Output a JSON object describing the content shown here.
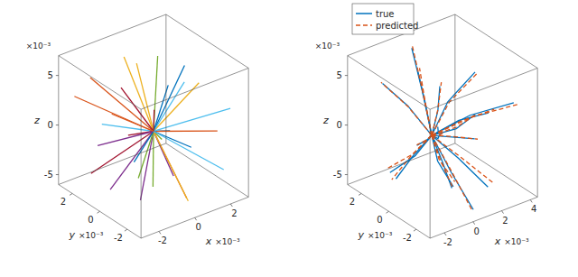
{
  "chart_data": [
    {
      "type": "line3d",
      "xlabel": "x",
      "ylabel": "y",
      "zlabel": "z",
      "exponent": "×10⁻³",
      "xlim": [
        -3,
        3
      ],
      "ylim": [
        -3,
        3
      ],
      "zlim": [
        -6,
        7
      ],
      "xticks": [
        -2,
        0,
        2
      ],
      "yticks": [
        -2,
        0,
        2
      ],
      "zticks": [
        -5,
        0,
        5
      ],
      "series": [
        {
          "color": "#0072bd",
          "values": [
            [
              0,
              0,
              0
            ],
            [
              2.5,
              1,
              4
            ]
          ]
        },
        {
          "color": "#d95319",
          "values": [
            [
              0,
              0,
              0
            ],
            [
              -2,
              2,
              5
            ]
          ]
        },
        {
          "color": "#edb120",
          "values": [
            [
              0,
              0,
              0
            ],
            [
              1,
              -2,
              6
            ]
          ]
        },
        {
          "color": "#7e2f8e",
          "values": [
            [
              0,
              0,
              0
            ],
            [
              -1.5,
              -1,
              -5
            ]
          ]
        },
        {
          "color": "#77ac30",
          "values": [
            [
              0,
              0,
              0
            ],
            [
              2,
              2,
              -4
            ]
          ]
        },
        {
          "color": "#4dbeee",
          "values": [
            [
              0,
              0,
              0
            ],
            [
              -2.5,
              0.5,
              2
            ]
          ]
        },
        {
          "color": "#a2142f",
          "values": [
            [
              0,
              0,
              0
            ],
            [
              0.5,
              2.5,
              -3
            ]
          ]
        },
        {
          "color": "#0072bd",
          "values": [
            [
              0,
              0,
              0
            ],
            [
              -1,
              -2.5,
              3
            ]
          ]
        },
        {
          "color": "#d95319",
          "values": [
            [
              0,
              0,
              0
            ],
            [
              2.8,
              -1,
              -1
            ]
          ]
        },
        {
          "color": "#edb120",
          "values": [
            [
              0,
              0,
              0
            ],
            [
              -0.5,
              1.5,
              6.5
            ]
          ]
        },
        {
          "color": "#7e2f8e",
          "values": [
            [
              0,
              0,
              0
            ],
            [
              1.5,
              0.5,
              -6
            ]
          ]
        },
        {
          "color": "#77ac30",
          "values": [
            [
              0,
              0,
              0
            ],
            [
              -2,
              -1.5,
              -2
            ]
          ]
        },
        {
          "color": "#4dbeee",
          "values": [
            [
              0,
              0,
              0
            ],
            [
              0.8,
              -1.2,
              5.5
            ]
          ]
        },
        {
          "color": "#a2142f",
          "values": [
            [
              0,
              0,
              0
            ],
            [
              -1.8,
              2.2,
              -5
            ]
          ]
        },
        {
          "color": "#0072bd",
          "values": [
            [
              0,
              0,
              0
            ],
            [
              2.2,
              1.8,
              1.5
            ]
          ]
        },
        {
          "color": "#d95319",
          "values": [
            [
              0,
              0,
              0
            ],
            [
              -0.3,
              -2.8,
              -4
            ]
          ]
        },
        {
          "color": "#edb120",
          "values": [
            [
              0,
              0,
              0
            ],
            [
              1.2,
              2.8,
              3.5
            ]
          ]
        },
        {
          "color": "#7e2f8e",
          "values": [
            [
              0,
              0,
              0
            ],
            [
              -2.8,
              -0.5,
              -3.5
            ]
          ]
        },
        {
          "color": "#77ac30",
          "values": [
            [
              0,
              0,
              0
            ],
            [
              0.2,
              0.3,
              -6
            ]
          ]
        },
        {
          "color": "#4dbeee",
          "values": [
            [
              0,
              0,
              0
            ],
            [
              2.6,
              -2.2,
              2.5
            ]
          ]
        },
        {
          "color": "#a2142f",
          "values": [
            [
              0,
              0,
              0
            ],
            [
              -1.2,
              0.8,
              4.5
            ]
          ]
        },
        {
          "color": "#0072bd",
          "values": [
            [
              0,
              0,
              0
            ],
            [
              1.8,
              -0.4,
              -2.5
            ]
          ]
        },
        {
          "color": "#d95319",
          "values": [
            [
              0,
              0,
              0
            ],
            [
              -0.8,
              2,
              0.5
            ]
          ]
        },
        {
          "color": "#edb120",
          "values": [
            [
              0,
              0,
              0
            ],
            [
              0.4,
              -2,
              -5.5
            ]
          ]
        },
        {
          "color": "#7e2f8e",
          "values": [
            [
              0,
              0,
              0
            ],
            [
              -2.2,
              1.2,
              -1
            ]
          ]
        },
        {
          "color": "#77ac30",
          "values": [
            [
              0,
              0,
              0
            ],
            [
              1,
              1,
              6
            ]
          ]
        },
        {
          "color": "#4dbeee",
          "values": [
            [
              0,
              0,
              0
            ],
            [
              2,
              -2.5,
              -3
            ]
          ]
        },
        {
          "color": "#a2142f",
          "values": [
            [
              0,
              0,
              0
            ],
            [
              -1.5,
              -2,
              5
            ]
          ]
        },
        {
          "color": "#0072bd",
          "values": [
            [
              0,
              0,
              0
            ],
            [
              0.6,
              2.2,
              -5.5
            ]
          ]
        },
        {
          "color": "#d95319",
          "values": [
            [
              0,
              0,
              0
            ],
            [
              -2.5,
              2.5,
              3
            ]
          ]
        }
      ]
    },
    {
      "type": "line3d",
      "xlabel": "x",
      "ylabel": "y",
      "zlabel": "z",
      "exponent": "×10⁻³",
      "legend": "upper left",
      "xlim": [
        -3,
        4.5
      ],
      "ylim": [
        -3,
        3
      ],
      "zlim": [
        -6,
        7
      ],
      "xticks": [
        -2,
        0,
        2,
        4
      ],
      "yticks": [
        -2,
        0,
        2
      ],
      "zticks": [
        -5,
        0,
        5
      ],
      "series": [
        {
          "name": "true",
          "color": "#0072bd",
          "line_style": "solid",
          "values": [
            [
              [
                0,
                0,
                0
              ],
              [
                1.5,
                0.4,
                2.2
              ],
              [
                3.5,
                0.5,
                4
              ]
            ],
            [
              [
                0,
                0,
                0
              ],
              [
                -0.8,
                0.9,
                2.6
              ],
              [
                -2,
                1.5,
                5
              ]
            ],
            [
              [
                0,
                0,
                0
              ],
              [
                1.1,
                -0.8,
                -2.2
              ],
              [
                2,
                -2,
                -4.5
              ]
            ],
            [
              [
                0,
                0,
                0
              ],
              [
                2,
                0.3,
                -0.7
              ],
              [
                4,
                1,
                -1
              ]
            ],
            [
              [
                0,
                0,
                0
              ],
              [
                -0.6,
                -1.1,
                1.6
              ],
              [
                -1.5,
                -2,
                3.5
              ]
            ],
            [
              [
                0,
                0,
                0
              ],
              [
                0.4,
                1.1,
                3.2
              ],
              [
                1,
                2.5,
                6
              ]
            ],
            [
              [
                0,
                0,
                0
              ],
              [
                1.6,
                -0.3,
                0.9
              ],
              [
                3,
                -1,
                1.5
              ]
            ],
            [
              [
                0,
                0,
                0
              ],
              [
                -1.1,
                0.2,
                -1.6
              ],
              [
                -2.5,
                0,
                -3
              ]
            ],
            [
              [
                0,
                0,
                0
              ],
              [
                0.3,
                -1.1,
                -2.9
              ],
              [
                0.5,
                -2.5,
                -5.5
              ]
            ],
            [
              [
                0,
                0,
                0
              ],
              [
                1.2,
                0.8,
                -1.7
              ],
              [
                2.5,
                2,
                -3
              ]
            ],
            [
              [
                0,
                0,
                0
              ],
              [
                -0.3,
                0.9,
                -2.7
              ],
              [
                -1,
                2,
                -5
              ]
            ],
            [
              [
                0,
                0,
                0
              ],
              [
                1.9,
                -0.8,
                1.7
              ],
              [
                3.8,
                -2,
                3
              ]
            ],
            [
              [
                0,
                0,
                0
              ],
              [
                0.6,
                0.2,
                -3.1
              ],
              [
                1.5,
                0,
                -6
              ]
            ],
            [
              [
                0,
                0,
                0
              ],
              [
                -0.9,
                -0.6,
                0.6
              ],
              [
                -2,
                -1,
                1
              ]
            ],
            [
              [
                0,
                0,
                0
              ],
              [
                0.1,
                0.6,
                2.8
              ],
              [
                0,
                1,
                5.5
              ]
            ],
            [
              [
                0,
                0,
                0
              ],
              [
                1,
                0.6,
                1.4
              ],
              [
                2,
                1.5,
                2.5
              ]
            ],
            [
              [
                0,
                0,
                0
              ],
              [
                1.4,
                0.2,
                -1.1
              ],
              [
                3,
                0,
                -2
              ]
            ],
            [
              [
                0,
                0,
                0
              ],
              [
                -0.4,
                -1.2,
                -1.4
              ],
              [
                -1,
                -2.5,
                -2.5
              ]
            ]
          ]
        },
        {
          "name": "predicted",
          "color": "#d95319",
          "line_style": "dashed",
          "values": [
            [
              [
                0,
                0,
                0
              ],
              [
                1.6,
                0.4,
                2.1
              ],
              [
                3.8,
                0.6,
                3.7
              ]
            ],
            [
              [
                0,
                0,
                0
              ],
              [
                -0.9,
                0.8,
                2.7
              ],
              [
                -2.2,
                1.4,
                5.3
              ]
            ],
            [
              [
                0,
                0,
                0
              ],
              [
                1.2,
                -0.9,
                -2.1
              ],
              [
                2.3,
                -2.1,
                -4.2
              ]
            ],
            [
              [
                0,
                0,
                0
              ],
              [
                2.1,
                0.4,
                -0.7
              ],
              [
                4.3,
                1.2,
                -1.3
              ]
            ],
            [
              [
                0,
                0,
                0
              ],
              [
                -0.7,
                -1.1,
                1.6
              ],
              [
                -1.7,
                -2.2,
                3.3
              ]
            ],
            [
              [
                0,
                0,
                0
              ],
              [
                0.5,
                1.2,
                3.2
              ],
              [
                1.1,
                2.6,
                6.3
              ]
            ],
            [
              [
                0,
                0,
                0
              ],
              [
                1.7,
                -0.4,
                0.9
              ],
              [
                3.3,
                -1.1,
                1.8
              ]
            ],
            [
              [
                0,
                0,
                0
              ],
              [
                -1.2,
                0.2,
                -1.5
              ],
              [
                -2.6,
                0.2,
                -3.2
              ]
            ],
            [
              [
                0,
                0,
                0
              ],
              [
                0.3,
                -1.2,
                -2.9
              ],
              [
                0.6,
                -2.3,
                -5.8
              ]
            ],
            [
              [
                0,
                0,
                0
              ],
              [
                1.3,
                0.9,
                -1.6
              ],
              [
                2.8,
                2.1,
                -3.2
              ]
            ],
            [
              [
                0,
                0,
                0
              ],
              [
                -0.4,
                1,
                -2.6
              ],
              [
                -1.1,
                2.2,
                -4.8
              ]
            ],
            [
              [
                0,
                0,
                0
              ],
              [
                2,
                -0.9,
                1.6
              ],
              [
                4.1,
                -2.1,
                2.8
              ]
            ],
            [
              [
                0,
                0,
                0
              ],
              [
                0.7,
                0.2,
                -3
              ],
              [
                1.7,
                0.1,
                -5.7
              ]
            ],
            [
              [
                0,
                0,
                0
              ],
              [
                -1,
                -0.6,
                0.6
              ],
              [
                -2.1,
                -1.1,
                1.2
              ]
            ],
            [
              [
                0,
                0,
                0
              ],
              [
                0.1,
                0.6,
                2.9
              ],
              [
                0.2,
                1.1,
                5.7
              ]
            ],
            [
              [
                0,
                0,
                0
              ],
              [
                1.1,
                0.7,
                1.4
              ],
              [
                2.2,
                1.6,
                2.7
              ]
            ],
            [
              [
                0,
                0,
                0
              ],
              [
                1.5,
                0.2,
                -1.1
              ],
              [
                3.3,
                0.1,
                -2.3
              ]
            ],
            [
              [
                0,
                0,
                0
              ],
              [
                -0.5,
                -1.2,
                -1.3
              ],
              [
                -1.1,
                -2.7,
                -2.3
              ]
            ]
          ]
        }
      ]
    }
  ]
}
